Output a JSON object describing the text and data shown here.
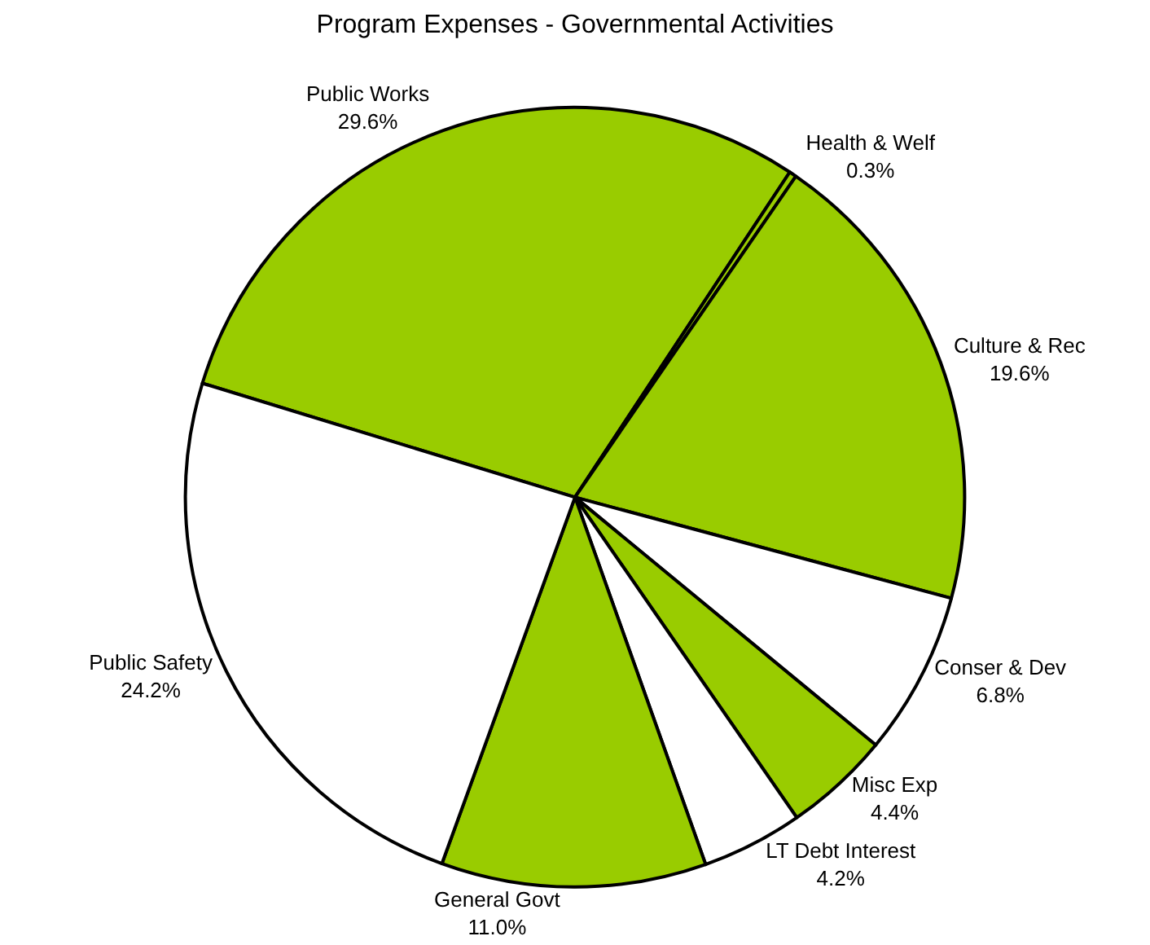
{
  "chart_data": {
    "type": "pie",
    "title": "Program Expenses - Governmental Activities",
    "categories": [
      "Public Works",
      "Health & Welf",
      "Culture & Rec",
      "Conser & Dev",
      "Misc Exp",
      "LT Debt Interest",
      "General Govt",
      "Public Safety"
    ],
    "values": [
      29.6,
      0.3,
      19.6,
      6.8,
      4.4,
      4.2,
      11.0,
      24.2
    ],
    "value_labels": [
      "29.6%",
      "0.3%",
      "19.6%",
      "6.8%",
      "4.4%",
      "4.2%",
      "11.0%",
      "24.2%"
    ],
    "colors": [
      "#99cc00",
      "#99cc00",
      "#99cc00",
      "#ffffff",
      "#99cc00",
      "#ffffff",
      "#99cc00",
      "#ffffff"
    ],
    "legend": false
  }
}
